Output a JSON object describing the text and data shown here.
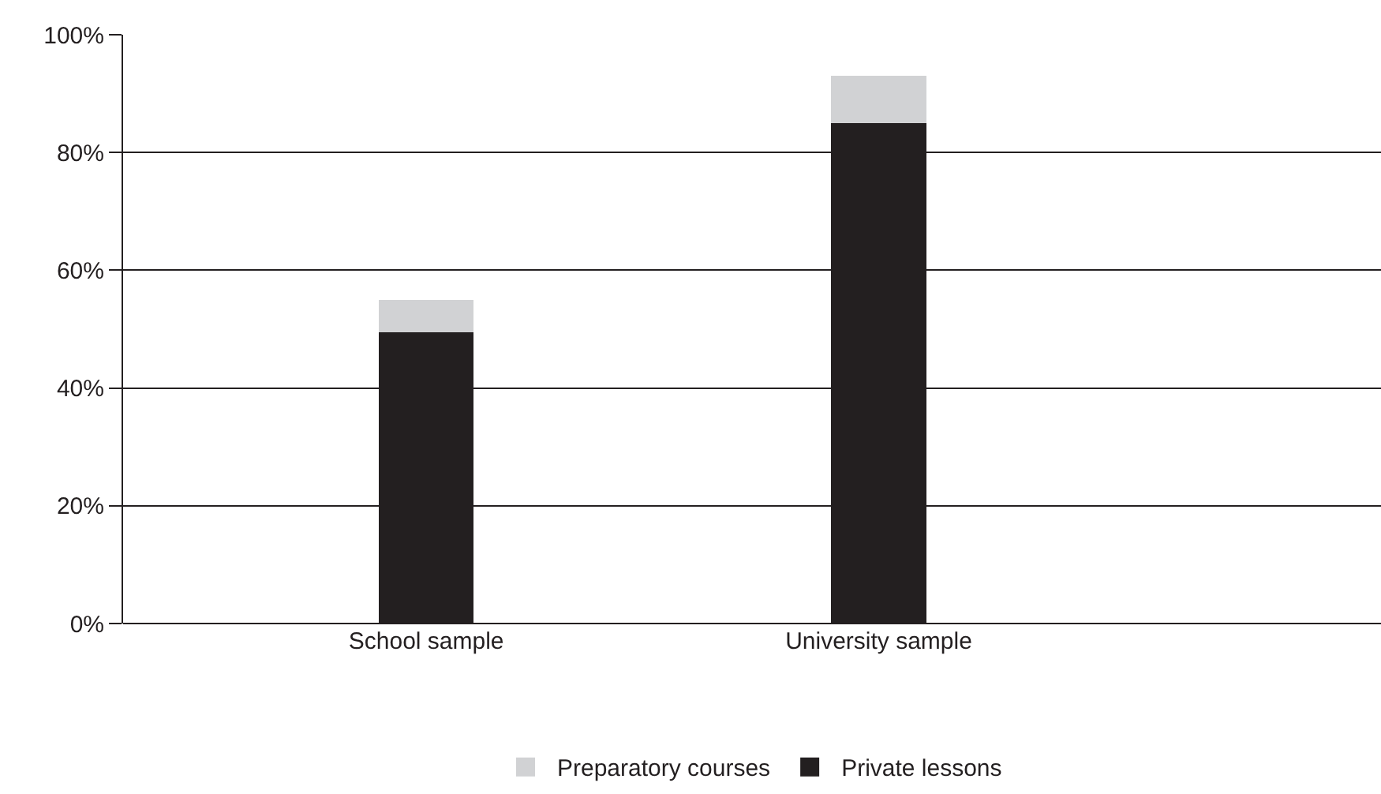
{
  "chart_data": {
    "type": "bar",
    "stacked": true,
    "categories": [
      "School sample",
      "University sample"
    ],
    "series": [
      {
        "name": "Private lessons",
        "color": "#231f20",
        "values": [
          49.5,
          85
        ]
      },
      {
        "name": "Preparatory courses",
        "color": "#d1d2d4",
        "values": [
          5.5,
          8
        ]
      }
    ],
    "ylim": [
      0,
      100
    ],
    "yticks": [
      {
        "value": 0,
        "label": "0%"
      },
      {
        "value": 20,
        "label": "20%"
      },
      {
        "value": 40,
        "label": "40%"
      },
      {
        "value": 60,
        "label": "60%"
      },
      {
        "value": 80,
        "label": "80%"
      },
      {
        "value": 100,
        "label": "100%"
      }
    ],
    "grid": "y",
    "legend": "bottom"
  }
}
